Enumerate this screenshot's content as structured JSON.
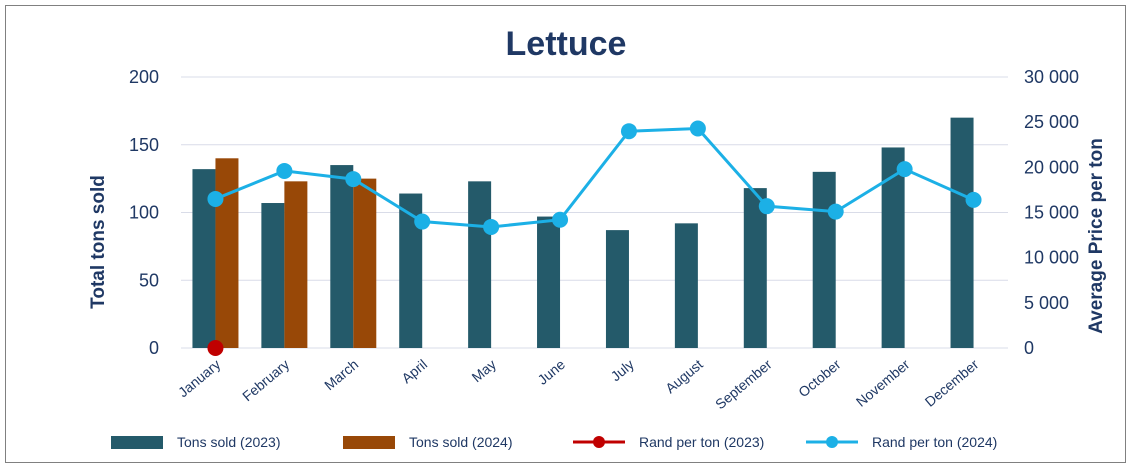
{
  "chart_data": {
    "type": "bar",
    "title": "Lettuce",
    "ylabel": "Total tons sold",
    "y2label": "Average Price per ton",
    "ylim": [
      0,
      200
    ],
    "y2lim": [
      0,
      30000
    ],
    "yticks": [
      "0",
      "50",
      "100",
      "150",
      "200"
    ],
    "y2ticks": [
      "0",
      "5 000",
      "10 000",
      "15 000",
      "20 000",
      "25 000",
      "30 000"
    ],
    "categories": [
      "January",
      "February",
      "March",
      "April",
      "May",
      "June",
      "July",
      "August",
      "September",
      "October",
      "November",
      "December"
    ],
    "series": [
      {
        "name": "Tons sold (2023)",
        "type": "bar",
        "axis": "left",
        "color": "#245a6a",
        "values": [
          132,
          107,
          135,
          114,
          123,
          97,
          87,
          92,
          118,
          130,
          148,
          170
        ]
      },
      {
        "name": "Tons sold (2024)",
        "type": "bar",
        "axis": "left",
        "color": "#984807",
        "values": [
          140,
          123,
          125,
          null,
          null,
          null,
          null,
          null,
          null,
          null,
          null,
          null
        ]
      },
      {
        "name": "Rand per ton (2023)",
        "type": "line",
        "axis": "right",
        "color": "#c00000",
        "values": [
          0,
          null,
          null,
          null,
          null,
          null,
          null,
          null,
          null,
          null,
          null,
          null
        ]
      },
      {
        "name": "Rand per ton (2024)",
        "type": "line",
        "axis": "right",
        "color": "#1cb0e6",
        "values": [
          16500,
          19600,
          18700,
          14000,
          13400,
          14200,
          24000,
          24300,
          15700,
          15100,
          19800,
          16400
        ]
      }
    ],
    "grid": true,
    "legend": "bottom"
  }
}
